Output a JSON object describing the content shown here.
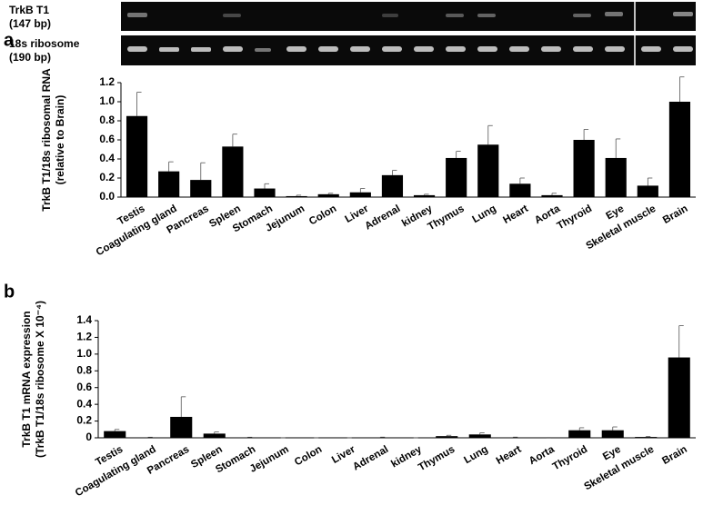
{
  "chart_data": [
    {
      "type": "bar",
      "panel": "a",
      "gel_labels": [
        [
          "TrkB T1",
          "(147 bp)"
        ],
        [
          "18s ribosome",
          "(190 bp)"
        ]
      ],
      "ylabel": [
        "TrkB T1/18s ribosomal RNA",
        "(relative to Brain)"
      ],
      "categories": [
        "Testis",
        "Coagulating gland",
        "Pancreas",
        "Spleen",
        "Stomach",
        "Jejunum",
        "Colon",
        "Liver",
        "Adrenal",
        "kidney",
        "Thymus",
        "Lung",
        "Heart",
        "Aorta",
        "Thyroid",
        "Eye",
        "Skeletal muscle",
        "Brain"
      ],
      "values": [
        0.85,
        0.27,
        0.18,
        0.53,
        0.09,
        0.01,
        0.03,
        0.05,
        0.23,
        0.02,
        0.41,
        0.55,
        0.14,
        0.02,
        0.6,
        0.41,
        0.12,
        1.0
      ],
      "errors": [
        0.25,
        0.1,
        0.18,
        0.13,
        0.05,
        0.01,
        0.01,
        0.04,
        0.05,
        0.01,
        0.07,
        0.2,
        0.06,
        0.02,
        0.11,
        0.2,
        0.08,
        0.26
      ],
      "color": "#000000",
      "ylim": [
        0,
        1.2
      ],
      "yticks": [
        {
          "value": 0,
          "label": "0.0"
        },
        0.2,
        0.4,
        0.6,
        0.8,
        {
          "value": 1,
          "label": "1.0"
        },
        1.2
      ]
    },
    {
      "type": "bar",
      "panel": "b",
      "ylabel": [
        "TrkB T1 mRNA expression",
        "(TrkB T1/18s ribosome X 10⁻⁴)"
      ],
      "categories": [
        "Testis",
        "Coagulating gland",
        "Pancreas",
        "Spleen",
        "Stomach",
        "Jejunum",
        "Colon",
        "Liver",
        "Adrenal",
        "kidney",
        "Thymus",
        "Lung",
        "Heart",
        "Aorta",
        "Thyroid",
        "Eye",
        "Skeletal muscle",
        "Brain"
      ],
      "values": [
        0.08,
        0.005,
        0.25,
        0.05,
        0.005,
        0,
        0,
        0,
        0.005,
        0,
        0.02,
        0.04,
        0.005,
        0.002,
        0.09,
        0.09,
        0.01,
        0.96
      ],
      "errors": [
        0.02,
        0.002,
        0.24,
        0.02,
        0.002,
        0,
        0,
        0,
        0.003,
        0,
        0.01,
        0.02,
        0.003,
        0.001,
        0.03,
        0.04,
        0.005,
        0.38
      ],
      "color": "#000000",
      "ylim": [
        0,
        1.4
      ],
      "yticks": [
        0,
        0.2,
        0.4,
        0.6,
        0.8,
        {
          "value": 1,
          "label": "1.0"
        },
        1.2,
        1.4
      ]
    }
  ]
}
